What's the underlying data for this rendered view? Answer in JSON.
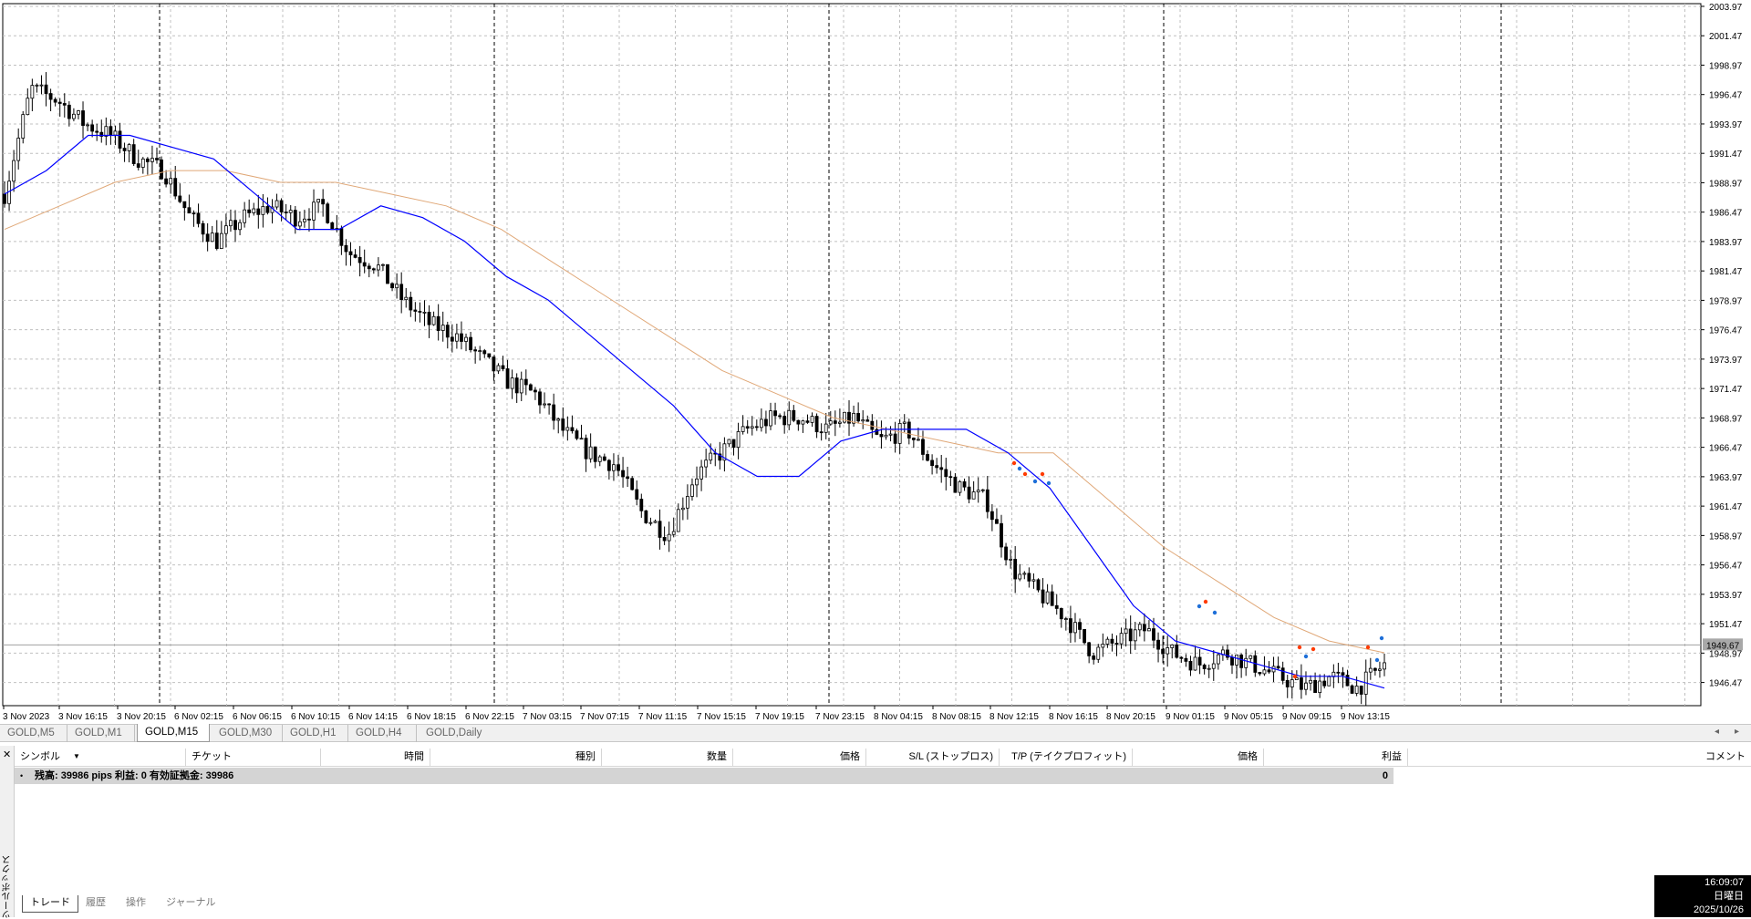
{
  "chart": {
    "symbol": "GOLD",
    "price_labels": [
      "2003.97",
      "2001.47",
      "1998.97",
      "1996.47",
      "1993.97",
      "1991.47",
      "1988.97",
      "1986.47",
      "1983.97",
      "1981.47",
      "1978.97",
      "1976.47",
      "1973.97",
      "1971.47",
      "1968.97",
      "1966.47",
      "1963.97",
      "1961.47",
      "1958.97",
      "1956.47",
      "1953.97",
      "1951.47",
      "1948.97",
      "1946.47"
    ],
    "current_price": "1949.67",
    "time_labels": [
      "3 Nov 2023",
      "3 Nov 16:15",
      "3 Nov 20:15",
      "6 Nov 02:15",
      "6 Nov 06:15",
      "6 Nov 10:15",
      "6 Nov 14:15",
      "6 Nov 18:15",
      "6 Nov 22:15",
      "7 Nov 03:15",
      "7 Nov 07:15",
      "7 Nov 11:15",
      "7 Nov 15:15",
      "7 Nov 19:15",
      "7 Nov 23:15",
      "8 Nov 04:15",
      "8 Nov 08:15",
      "8 Nov 12:15",
      "8 Nov 16:15",
      "8 Nov 20:15",
      "9 Nov 01:15",
      "9 Nov 05:15",
      "9 Nov 09:15",
      "9 Nov 13:15"
    ],
    "colors": {
      "background": "#ffffff",
      "candle": "#000000",
      "ma_fast": "#0000ff",
      "ma_slow": "#e0a878",
      "grid": "#c0c0c0"
    },
    "chart_data": {
      "type": "line",
      "title": "",
      "xlabel": "",
      "ylabel": "",
      "ylim": [
        1944.5,
        2004.2
      ],
      "grid": true,
      "series": [
        {
          "values": [
            1988,
            1997,
            1996,
            1994,
            1993,
            1991,
            1990,
            1986,
            1984,
            1986,
            1987,
            1986,
            1987,
            1983,
            1982,
            1979,
            1977,
            1976,
            1974,
            1972,
            1971,
            1968,
            1966,
            1965,
            1961,
            1959,
            1964,
            1966,
            1968,
            1969,
            1969,
            1968,
            1969,
            1967,
            1968,
            1965,
            1963,
            1962,
            1956,
            1954,
            1952,
            1949,
            1950,
            1951,
            1949,
            1948,
            1949,
            1948,
            1947,
            1946,
            1947,
            1946,
            1948
          ]
        },
        {
          "values": [
            1988,
            1990,
            1993,
            1993,
            1992,
            1991,
            1988,
            1985,
            1985,
            1987,
            1986,
            1984,
            1981,
            1979,
            1976,
            1973,
            1970,
            1966,
            1964,
            1964,
            1967,
            1968,
            1968,
            1968,
            1966,
            1963,
            1958,
            1953,
            1950,
            1949,
            1948,
            1947,
            1947,
            1946
          ]
        },
        {
          "values": [
            1985,
            1987,
            1989,
            1990,
            1990,
            1989,
            1989,
            1988,
            1987,
            1985,
            1982,
            1979,
            1976,
            1973,
            1971,
            1969,
            1968,
            1967,
            1966,
            1966,
            1962,
            1958,
            1955,
            1952,
            1950,
            1949
          ]
        }
      ]
    }
  },
  "tabs": [
    "GOLD,M5",
    "GOLD,M1",
    "GOLD,M15",
    "GOLD,M30",
    "GOLD,H1",
    "GOLD,H4",
    "GOLD,Daily"
  ],
  "active_tab": "GOLD,M15",
  "toolbox": {
    "vertical_label": "ツールボックス",
    "columns": [
      "シンボル",
      "チケット",
      "時間",
      "種別",
      "数量",
      "価格",
      "S/L (ストップロス)",
      "T/P (テイクプロフィット)",
      "価格",
      "利益",
      "コメント"
    ],
    "balance_row": {
      "text": "残高: 39986 pips   利益: 0   有効証拠金: 39986",
      "profit": "0"
    },
    "bottom_tabs": [
      "トレード",
      "履歴",
      "操作",
      "ジャーナル"
    ]
  },
  "clock": {
    "time": "16:09:07",
    "weekday": "日曜日",
    "date": "2025/10/26"
  }
}
